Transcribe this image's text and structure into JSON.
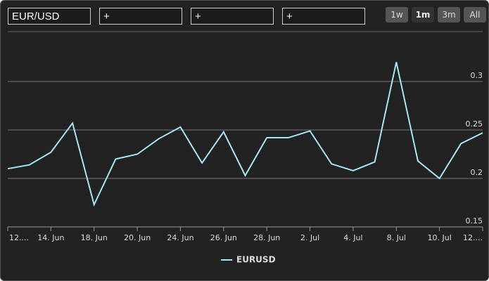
{
  "controls": {
    "inputs": [
      "EUR/USD",
      "+",
      "+",
      "+"
    ],
    "buttons": [
      "1w",
      "1m",
      "3m",
      "All"
    ],
    "selected": 1
  },
  "chart_data": {
    "type": "line",
    "categories": [
      "12....",
      null,
      "14. Jun",
      null,
      "18. Jun",
      null,
      "20. Jun",
      null,
      "24. Jun",
      null,
      "26. Jun",
      null,
      "28. Jun",
      null,
      "2. Jul",
      null,
      "4. Jul",
      null,
      "8. Jul",
      null,
      "10. Jul",
      null,
      "12...."
    ],
    "series": [
      {
        "name": "EURUSD",
        "color": "#a6e6f5",
        "values": [
          0.21,
          0.214,
          0.227,
          0.257,
          0.173,
          0.22,
          0.225,
          0.241,
          0.253,
          0.216,
          0.248,
          0.203,
          0.242,
          0.242,
          0.249,
          0.215,
          0.208,
          0.217,
          0.32,
          0.218,
          0.2,
          0.236,
          0.247
        ]
      }
    ],
    "ylim": [
      0.15,
      0.35
    ],
    "yticks": [
      0.15,
      0.2,
      0.25,
      0.3
    ],
    "grid": true,
    "legend": "bottom"
  }
}
